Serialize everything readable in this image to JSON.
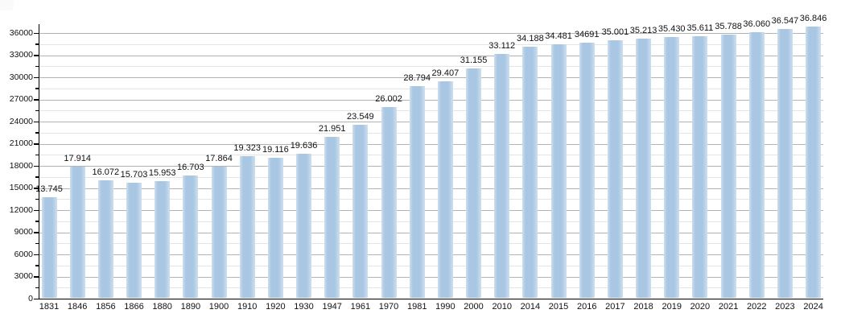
{
  "chart_data": {
    "type": "bar",
    "title": "",
    "xlabel": "",
    "ylabel": "",
    "categories": [
      "1831",
      "1846",
      "1856",
      "1866",
      "1880",
      "1890",
      "1900",
      "1910",
      "1920",
      "1930",
      "1947",
      "1961",
      "1970",
      "1981",
      "1990",
      "2000",
      "2010",
      "2014",
      "2015",
      "2016",
      "2017",
      "2018",
      "2019",
      "2020",
      "2021",
      "2022",
      "2023",
      "2024"
    ],
    "values": [
      13745,
      17914,
      16072,
      15703,
      15953,
      16703,
      17864,
      19323,
      19116,
      19636,
      21951,
      23549,
      26002,
      28794,
      29407,
      31155,
      33112,
      34188,
      34481,
      34691,
      35001,
      35213,
      35430,
      35611,
      35788,
      36060,
      36547,
      36846
    ],
    "bar_labels": [
      "13.745",
      "17.914",
      "16.072",
      "15.703",
      "15.953",
      "16.703",
      "17.864",
      "19.323",
      "19.116",
      "19.636",
      "21.951",
      "23.549",
      "26.002",
      "28.794",
      "29.407",
      "31.155",
      "33.112",
      "34.188",
      "34.481",
      "34691",
      "35.001",
      "35.213",
      "35.430",
      "35.611",
      "35.788",
      "36.060",
      "36.547",
      "36.846"
    ],
    "y_ticks": [
      0,
      3000,
      6000,
      9000,
      12000,
      15000,
      18000,
      21000,
      24000,
      27000,
      30000,
      33000,
      36000
    ],
    "y_minor_step": 1500,
    "ylim": [
      0,
      36000
    ],
    "grid": "on",
    "legend": "none",
    "colors": {
      "bar_main": "#a9c7e3",
      "bar_edge": "#cddfef",
      "grid_major": "#b3b3b3",
      "grid_minor": "#e4e4e4",
      "axis": "#000000",
      "text": "#111111"
    }
  }
}
